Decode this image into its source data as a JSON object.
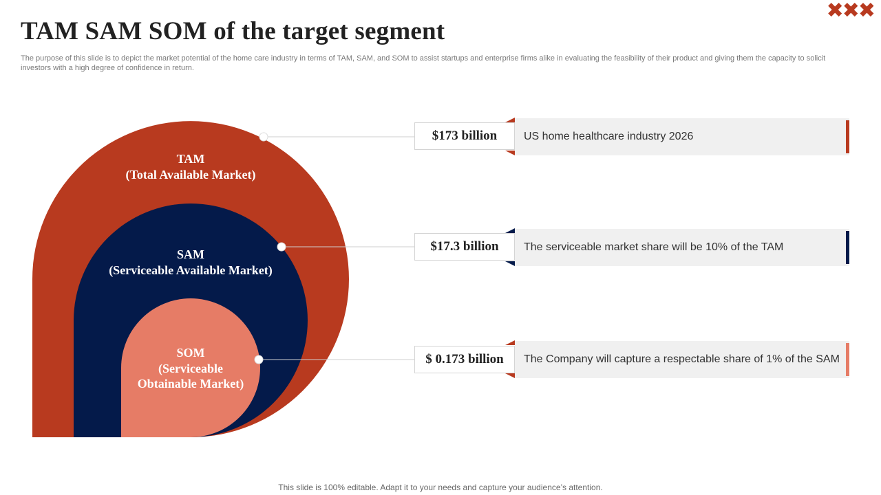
{
  "header": {
    "title": "TAM SAM SOM of the target segment",
    "subtitle": "The purpose of this slide is to depict the market potential of the home care industry in terms of TAM,  SAM,  and SOM  to assist startups and enterprise firms alike in evaluating the feasibility of their product and giving them the capacity to  solicit investors with a high degree of confidence in return.",
    "decoration": "✖✖✖"
  },
  "colors": {
    "tam": "#b83a1f",
    "sam": "#041a4a",
    "som": "#e67c66",
    "background": "#ffffff"
  },
  "circles": {
    "tam": {
      "line1": "TAM",
      "line2": "(Total Available Market)"
    },
    "sam": {
      "line1": "SAM",
      "line2": "(Serviceable Available Market)"
    },
    "som": {
      "line1": "SOM",
      "line2": "(Serviceable",
      "line3": "Obtainable Market)"
    }
  },
  "rows": [
    {
      "value": "$173 billion",
      "description": "US home healthcare industry 2026",
      "accent": "#b83a1f"
    },
    {
      "value": "$17.3 billion",
      "description": "The serviceable market share will be 10% of the TAM",
      "accent": "#041a4a"
    },
    {
      "value": "$ 0.173 billion",
      "description": "The Company will capture a respectable share of 1% of the SAM",
      "accent": "#e67c66"
    }
  ],
  "footer": "This slide is 100% editable. Adapt it to your needs and capture your audience’s attention."
}
